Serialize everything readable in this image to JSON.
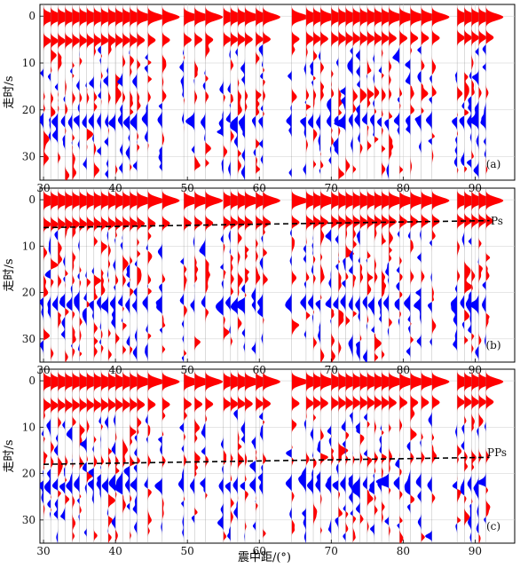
{
  "colors": {
    "positive": "#ff0000",
    "negative": "#0000ff",
    "grid": "#cccccc",
    "guide": "#000000"
  },
  "x_axis_label": "震中距/(°)",
  "chart_data": [
    {
      "type": "waveform",
      "panel_label": "(a)",
      "ylabel": "走时/s",
      "xlim": [
        29.5,
        95.5
      ],
      "ylim": [
        -2.5,
        35
      ],
      "y_inverted": true,
      "xticks": [
        30,
        40,
        50,
        60,
        70,
        80,
        90
      ],
      "yticks": [
        0,
        10,
        20,
        30
      ],
      "grid": true,
      "arrival_line": null
    },
    {
      "type": "waveform",
      "panel_label": "(b)",
      "ylabel": "走时/s",
      "xlim": [
        29.5,
        95.5
      ],
      "ylim": [
        -2.5,
        35
      ],
      "y_inverted": true,
      "xticks": [
        30,
        40,
        50,
        60,
        70,
        80,
        90
      ],
      "yticks": [
        0,
        10,
        20,
        30
      ],
      "grid": true,
      "arrival_line": {
        "phase": "Ps",
        "x": [
          30,
          92
        ],
        "y": [
          6,
          4.5
        ]
      }
    },
    {
      "type": "waveform",
      "panel_label": "(c)",
      "ylabel": "走时/s",
      "xlim": [
        29.5,
        95.5
      ],
      "ylim": [
        -2.5,
        35
      ],
      "y_inverted": true,
      "xticks": [
        30,
        40,
        50,
        60,
        70,
        80,
        90
      ],
      "yticks": [
        0,
        10,
        20,
        30
      ],
      "grid": true,
      "arrival_line": {
        "phase": "PPs",
        "x": [
          30,
          92
        ],
        "y": [
          18,
          16.5
        ]
      }
    }
  ]
}
